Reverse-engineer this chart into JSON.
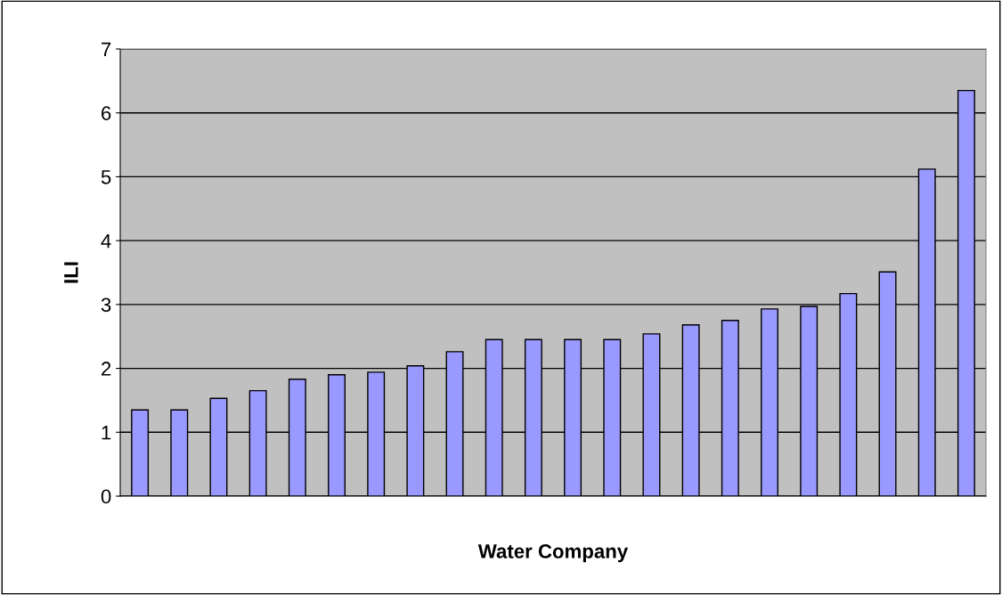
{
  "chart_data": {
    "type": "bar",
    "xlabel": "Water Company",
    "ylabel": "ILI",
    "categories": [
      null,
      null,
      null,
      null,
      null,
      null,
      null,
      null,
      null,
      null,
      null,
      null,
      null,
      null,
      null,
      null,
      null,
      null,
      null,
      null,
      null,
      null
    ],
    "values": [
      1.35,
      1.35,
      1.53,
      1.65,
      1.83,
      1.9,
      1.94,
      2.04,
      2.26,
      2.45,
      2.45,
      2.45,
      2.45,
      2.54,
      2.68,
      2.75,
      2.93,
      2.97,
      3.17,
      3.51,
      5.12,
      6.35
    ],
    "color": "#9999ff",
    "ylim": [
      0,
      7
    ],
    "yticks": [
      0,
      1,
      2,
      3,
      4,
      5,
      6,
      7
    ],
    "grid": "y",
    "legend": false
  }
}
